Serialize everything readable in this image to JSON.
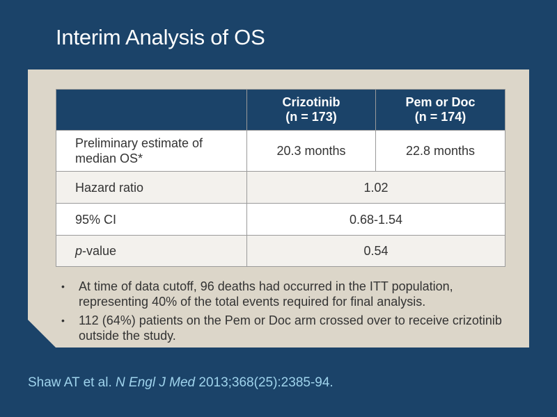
{
  "title": "Interim Analysis of OS",
  "table": {
    "headers": [
      {
        "line1": "",
        "line2": ""
      },
      {
        "line1": "Crizotinib",
        "line2": "(n = 173)"
      },
      {
        "line1": "Pem or Doc",
        "line2": "(n = 174)"
      }
    ],
    "rows": [
      {
        "label": "Preliminary estimate of median OS*",
        "crizotinib": "20.3 months",
        "pem_or_doc": "22.8 months"
      },
      {
        "label": "Hazard ratio",
        "value": "1.02"
      },
      {
        "label": "95% CI",
        "value": "0.68-1.54"
      },
      {
        "label_italic": "p",
        "label_rest": "-value",
        "value": "0.54"
      }
    ]
  },
  "bullets": [
    "At time of data cutoff, 96 deaths had occurred in the ITT population, representing 40% of the total events required for final analysis.",
    "112 (64%) patients on the Pem or Doc arm crossed over to receive crizotinib outside the study."
  ],
  "bullet_symbol": "•",
  "citation": {
    "authors": "Shaw AT et al. ",
    "journal": "N Engl J Med",
    "details": " 2013;368(25):2385-94."
  },
  "colors": {
    "background": "#1b4369",
    "panel": "#dcd6c9",
    "header_fill": "#1b4369",
    "citation_text": "#9fd3ec"
  }
}
